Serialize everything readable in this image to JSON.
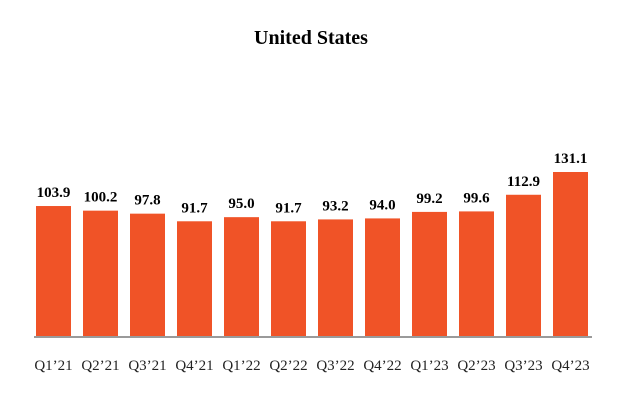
{
  "chart_data": {
    "type": "bar",
    "title": "United States",
    "xlabel": "",
    "ylabel": "",
    "categories": [
      "Q1’21",
      "Q2’21",
      "Q3’21",
      "Q4’21",
      "Q1’22",
      "Q2’22",
      "Q3’22",
      "Q4’22",
      "Q1’23",
      "Q2’23",
      "Q3’23",
      "Q4’23"
    ],
    "values": [
      103.9,
      100.2,
      97.8,
      91.7,
      95.0,
      91.7,
      93.2,
      94.0,
      99.2,
      99.6,
      112.9,
      131.1
    ],
    "value_labels": [
      "103.9",
      "100.2",
      "97.8",
      "91.7",
      "95.0",
      "91.7",
      "93.2",
      "94.0",
      "99.2",
      "99.6",
      "112.9",
      "131.1"
    ],
    "ylim": [
      0,
      131.1
    ],
    "grid": false,
    "legend": "none",
    "colors": {
      "bar": "#F05327",
      "axis": "#9a9a9a"
    }
  }
}
